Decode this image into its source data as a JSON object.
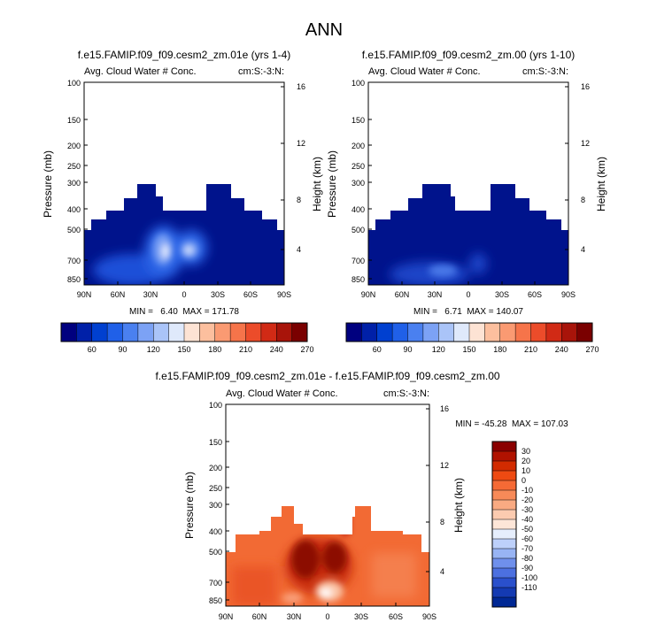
{
  "page_title": "ANN",
  "chart_data": [
    {
      "type": "heatmap",
      "title": "f.e15.FAMIP.f09_f09.cesm2_zm.01e (yrs 1-4)",
      "subtitle_left": "Avg. Cloud Water # Conc.",
      "subtitle_right": "cm:S:-3:N:",
      "ylabel": "Pressure (mb)",
      "ylabel_right": "Height (km)",
      "xticks": [
        "90N",
        "60N",
        "30N",
        "0",
        "30S",
        "60S",
        "90S"
      ],
      "yticks": [
        "100",
        "150",
        "200",
        "250",
        "300",
        "400",
        "500",
        "700",
        "850"
      ],
      "yticks_right": [
        "16",
        "12",
        "8",
        "4"
      ],
      "stats": "MIN =   6.40  MAX = 171.78",
      "max_level": 171.78,
      "colorbar": {
        "labels": [
          "60",
          "90",
          "120",
          "150",
          "180",
          "210",
          "240",
          "270"
        ],
        "colors": [
          "#00007f",
          "#0020a8",
          "#0040d0",
          "#2060e8",
          "#4a80f0",
          "#7ca2f5",
          "#aac4f8",
          "#dfe9fb",
          "#fde3d4",
          "#fcbf9e",
          "#fa9a72",
          "#f6744a",
          "#ec4c2a",
          "#d12a15",
          "#a8140a",
          "#7a0000"
        ]
      }
    },
    {
      "type": "heatmap",
      "title": "f.e15.FAMIP.f09_f09.cesm2_zm.00 (yrs 1-10)",
      "subtitle_left": "Avg. Cloud Water # Conc.",
      "subtitle_right": "cm:S:-3:N:",
      "ylabel": "Pressure (mb)",
      "ylabel_right": "Height (km)",
      "xticks": [
        "90N",
        "60N",
        "30N",
        "0",
        "30S",
        "60S",
        "90S"
      ],
      "yticks": [
        "100",
        "150",
        "200",
        "250",
        "300",
        "400",
        "500",
        "700",
        "850"
      ],
      "yticks_right": [
        "16",
        "12",
        "8",
        "4"
      ],
      "stats": "MIN =   6.71  MAX = 140.07",
      "max_level": 140.07,
      "colorbar": {
        "labels": [
          "60",
          "90",
          "120",
          "150",
          "180",
          "210",
          "240",
          "270"
        ],
        "colors": [
          "#00007f",
          "#0020a8",
          "#0040d0",
          "#2060e8",
          "#4a80f0",
          "#7ca2f5",
          "#aac4f8",
          "#dfe9fb",
          "#fde3d4",
          "#fcbf9e",
          "#fa9a72",
          "#f6744a",
          "#ec4c2a",
          "#d12a15",
          "#a8140a",
          "#7a0000"
        ]
      }
    },
    {
      "type": "heatmap",
      "title": "f.e15.FAMIP.f09_f09.cesm2_zm.01e - f.e15.FAMIP.f09_f09.cesm2_zm.00",
      "subtitle_left": "Avg. Cloud Water # Conc.",
      "subtitle_right": "cm:S:-3:N:",
      "ylabel": "Pressure (mb)",
      "ylabel_right": "Height (km)",
      "xticks": [
        "90N",
        "60N",
        "30N",
        "0",
        "30S",
        "60S",
        "90S"
      ],
      "yticks": [
        "100",
        "150",
        "200",
        "250",
        "300",
        "400",
        "500",
        "700",
        "850"
      ],
      "yticks_right": [
        "16",
        "12",
        "8",
        "4"
      ],
      "stats": "MIN = -45.28  MAX = 107.03",
      "colorbar": {
        "labels": [
          "30",
          "20",
          "10",
          "0",
          "-10",
          "-20",
          "-30",
          "-40",
          "-50",
          "-60",
          "-70",
          "-80",
          "-90",
          "-100",
          "-110"
        ],
        "colors": [
          "#8a0000",
          "#b01200",
          "#d22b00",
          "#ee4a12",
          "#f56a35",
          "#f78a58",
          "#f9aa82",
          "#fbcbb0",
          "#fde6d8",
          "#e6eefc",
          "#bdd0fa",
          "#98b4f4",
          "#6f90ec",
          "#4c70e0",
          "#2a50cc",
          "#143ab2",
          "#002894"
        ]
      }
    }
  ]
}
